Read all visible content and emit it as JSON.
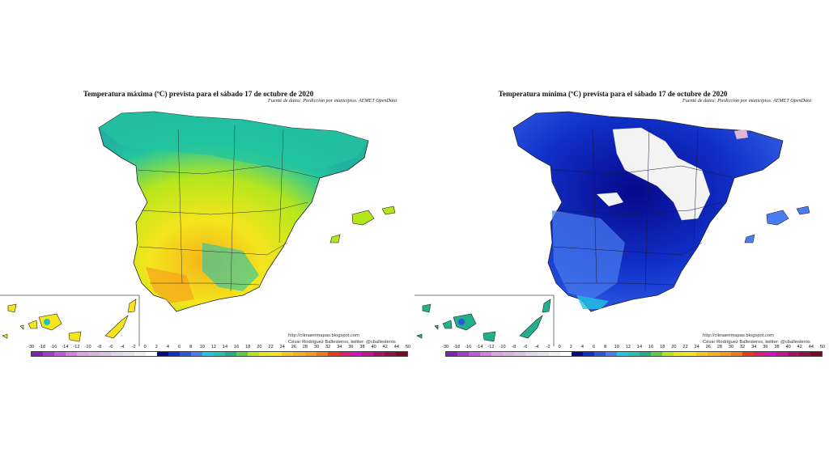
{
  "maps": [
    {
      "title": "Temperatura máxima (ºC) prevista para el sábado 17 de octubre de 2020",
      "subtitle": "Fuente de datos: Predicción por municipios. AEMET OpenData",
      "credit_url": "http://climaenmapas.blogspot.com",
      "credit_author": "César Rodríguez Ballesteros, twitter: @cballesteros",
      "variable": "maximum temperature",
      "dominant_colors": [
        "#f4e51d",
        "#b5e61d",
        "#22c4b0",
        "#f5b21a"
      ]
    },
    {
      "title": "Temperatura mínima (ºC) prevista para el sábado 17 de octubre de 2020",
      "subtitle": "Fuente de datos: Predicción por municipios. AEMET OpenData",
      "credit_url": "http://climaenmapas.blogspot.com",
      "credit_author": "César Rodríguez Ballesteros, twitter: @cballesteros",
      "variable": "minimum temperature",
      "dominant_colors": [
        "#0b1aa0",
        "#2c55e0",
        "#f3f3f3",
        "#22c4b0"
      ]
    }
  ],
  "legend": {
    "labels": [
      "-30",
      "-18",
      "-16",
      "-14",
      "-12",
      "-10",
      "-8",
      "-6",
      "-4",
      "-2",
      "0",
      "2",
      "4",
      "6",
      "8",
      "10",
      "12",
      "14",
      "16",
      "18",
      "20",
      "22",
      "24",
      "26",
      "28",
      "30",
      "32",
      "34",
      "36",
      "38",
      "40",
      "42",
      "44",
      "50"
    ],
    "colors": [
      "#7b21b4",
      "#a13ccf",
      "#c05ad8",
      "#d47fe0",
      "#e0a0e6",
      "#dcb6d8",
      "#d8c6e0",
      "#e0d6e8",
      "#e8e2ee",
      "#f2f0f4",
      "#ffffff",
      "#08088a",
      "#1030c8",
      "#2c55e0",
      "#4a7ef0",
      "#22c4e0",
      "#22c4b0",
      "#22b08c",
      "#62c84a",
      "#b5e61d",
      "#e4e81d",
      "#f4e51d",
      "#f5c81a",
      "#f5b21a",
      "#f59a1a",
      "#f07818",
      "#e83a14",
      "#e01e6e",
      "#d810c0",
      "#c81090",
      "#a81060",
      "#901040",
      "#7a0c22"
    ]
  }
}
